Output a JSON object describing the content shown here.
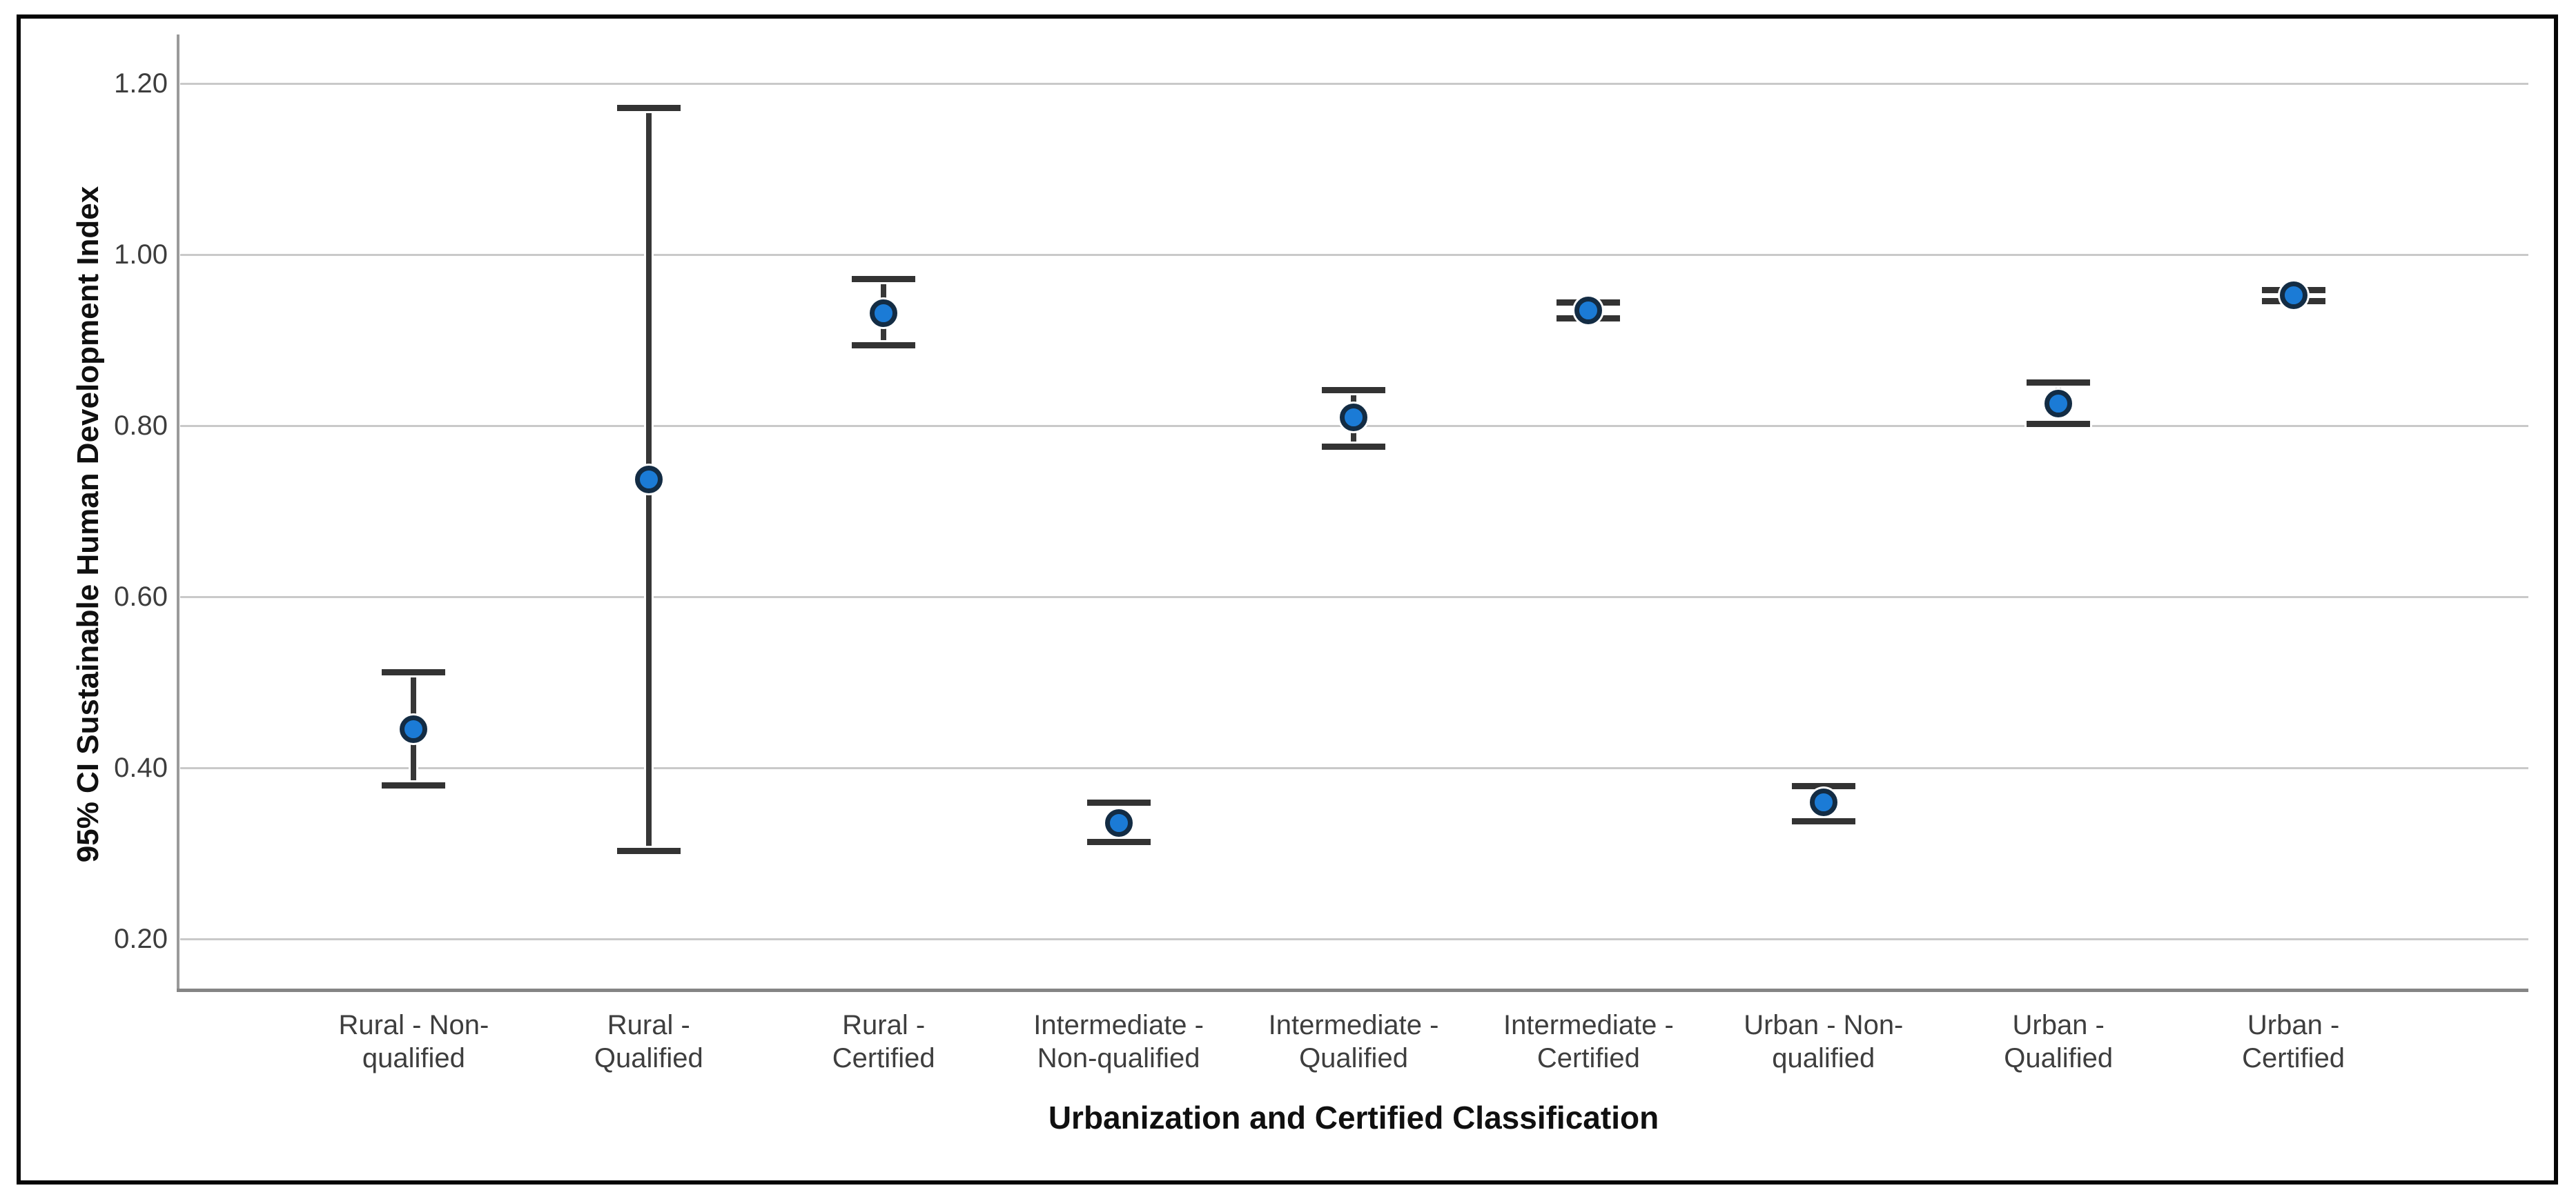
{
  "chart_data": {
    "type": "errorbar",
    "title": "",
    "xlabel": "Urbanization and Certified Classification",
    "ylabel": "95% CI Sustainable Human Development Index",
    "legend": null,
    "grid": "horizontal",
    "ylim": [
      0.142,
      1.227
    ],
    "yticks": [
      {
        "value": 0.2,
        "label": "0.20"
      },
      {
        "value": 0.4,
        "label": "0.40"
      },
      {
        "value": 0.6,
        "label": "0.60"
      },
      {
        "value": 0.8,
        "label": "0.80"
      },
      {
        "value": 1.0,
        "label": "1.00"
      },
      {
        "value": 1.2,
        "label": "1.20"
      }
    ],
    "categories": [
      "Rural - Non-qualified",
      "Rural - Qualified",
      "Rural - Certified",
      "Intermediate - Non-qualified",
      "Intermediate - Qualified",
      "Intermediate - Certified",
      "Urban - Non-qualified",
      "Urban - Qualified",
      "Urban - Certified"
    ],
    "category_label_lines": [
      [
        "Rural - Non-",
        "qualified"
      ],
      [
        "Rural -",
        "Qualified"
      ],
      [
        "Rural -",
        "Certified"
      ],
      [
        "Intermediate -",
        "Non-qualified"
      ],
      [
        "Intermediate -",
        "Qualified"
      ],
      [
        "Intermediate -",
        "Certified"
      ],
      [
        "Urban - Non-",
        "qualified"
      ],
      [
        "Urban -",
        "Qualified"
      ],
      [
        "Urban -",
        "Certified"
      ]
    ],
    "points": [
      {
        "category": "Rural - Non-qualified",
        "mean": 0.445,
        "ci_low": 0.38,
        "ci_high": 0.512
      },
      {
        "category": "Rural - Qualified",
        "mean": 0.737,
        "ci_low": 0.303,
        "ci_high": 1.172
      },
      {
        "category": "Rural - Certified",
        "mean": 0.932,
        "ci_low": 0.895,
        "ci_high": 0.972
      },
      {
        "category": "Intermediate - Non-qualified",
        "mean": 0.336,
        "ci_low": 0.314,
        "ci_high": 0.36
      },
      {
        "category": "Intermediate - Qualified",
        "mean": 0.81,
        "ci_low": 0.776,
        "ci_high": 0.842
      },
      {
        "category": "Intermediate - Certified",
        "mean": 0.935,
        "ci_low": 0.926,
        "ci_high": 0.945
      },
      {
        "category": "Urban - Non-qualified",
        "mean": 0.36,
        "ci_low": 0.338,
        "ci_high": 0.379
      },
      {
        "category": "Urban - Qualified",
        "mean": 0.826,
        "ci_low": 0.803,
        "ci_high": 0.851
      },
      {
        "category": "Urban - Certified",
        "mean": 0.953,
        "ci_low": 0.946,
        "ci_high": 0.959
      }
    ],
    "colors": {
      "dot_fill": "#1b7bd6",
      "dot_outline": "#132c44",
      "error_bar": "#373737",
      "gridline": "#c9c9c9",
      "axis_line": "#9a9a9a",
      "tick_text": "#3d3d3d",
      "title_text": "#101010",
      "frame_border": "#060606",
      "background": "#ffffff"
    }
  }
}
